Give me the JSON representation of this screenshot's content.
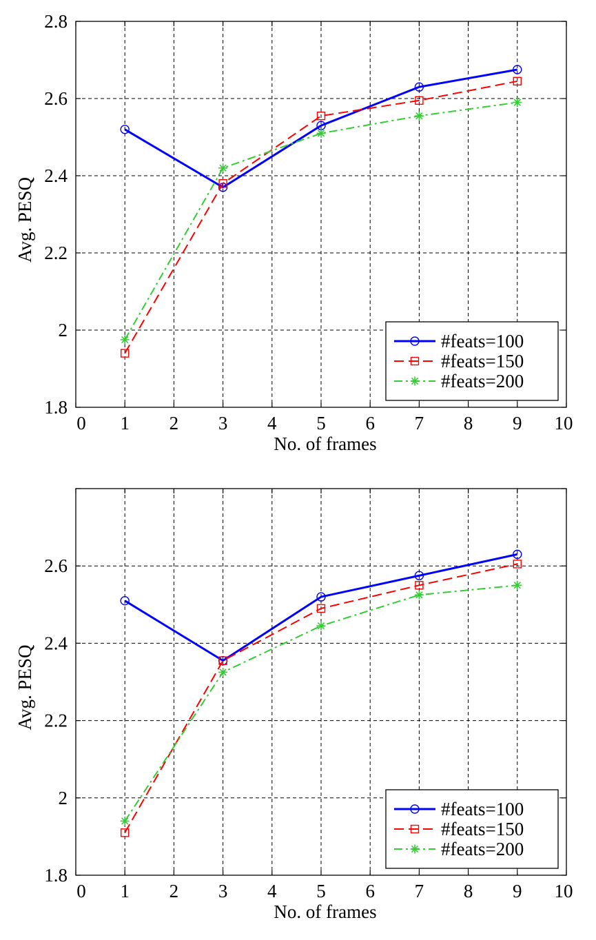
{
  "chart_data": [
    {
      "type": "line",
      "title": "",
      "xlabel": "No. of frames",
      "ylabel": "Avg. PESQ",
      "xlim": [
        0,
        10
      ],
      "ylim": [
        1.8,
        2.8
      ],
      "xticks": [
        "0",
        "1",
        "2",
        "3",
        "4",
        "5",
        "6",
        "7",
        "8",
        "9",
        "10"
      ],
      "yticks": [
        "1.8",
        "2",
        "2.2",
        "2.4",
        "2.6",
        "2.8"
      ],
      "grid": true,
      "legend_position": "bottom-right",
      "x": [
        1,
        3,
        5,
        7,
        9
      ],
      "series": [
        {
          "name": "#feats=100",
          "values": [
            2.52,
            2.37,
            2.53,
            2.63,
            2.675
          ],
          "color": "#0000ff",
          "line_style": "solid",
          "marker": "circle"
        },
        {
          "name": "#feats=150",
          "values": [
            1.94,
            2.38,
            2.555,
            2.595,
            2.645
          ],
          "color": "#ff0000",
          "line_style": "dashed",
          "marker": "square"
        },
        {
          "name": "#feats=200",
          "values": [
            1.975,
            2.42,
            2.51,
            2.555,
            2.59
          ],
          "color": "#33cc33",
          "line_style": "dash-dot",
          "marker": "asterisk"
        }
      ]
    },
    {
      "type": "line",
      "title": "",
      "xlabel": "No. of frames",
      "ylabel": "Avg. PESQ",
      "xlim": [
        0,
        10
      ],
      "ylim": [
        1.8,
        2.8
      ],
      "xticks": [
        "0",
        "1",
        "2",
        "3",
        "4",
        "5",
        "6",
        "7",
        "8",
        "9",
        "10"
      ],
      "yticks": [
        "1.8",
        "2",
        "2.2",
        "2.4",
        "2.6",
        ""
      ],
      "grid": true,
      "legend_position": "bottom-right",
      "x": [
        1,
        3,
        5,
        7,
        9
      ],
      "series": [
        {
          "name": "#feats=100",
          "values": [
            2.51,
            2.355,
            2.52,
            2.575,
            2.63
          ],
          "color": "#0000ff",
          "line_style": "solid",
          "marker": "circle"
        },
        {
          "name": "#feats=150",
          "values": [
            1.91,
            2.355,
            2.49,
            2.55,
            2.605
          ],
          "color": "#ff0000",
          "line_style": "dashed",
          "marker": "square"
        },
        {
          "name": "#feats=200",
          "values": [
            1.94,
            2.325,
            2.445,
            2.525,
            2.55
          ],
          "color": "#33cc33",
          "line_style": "dash-dot",
          "marker": "asterisk"
        }
      ]
    }
  ]
}
